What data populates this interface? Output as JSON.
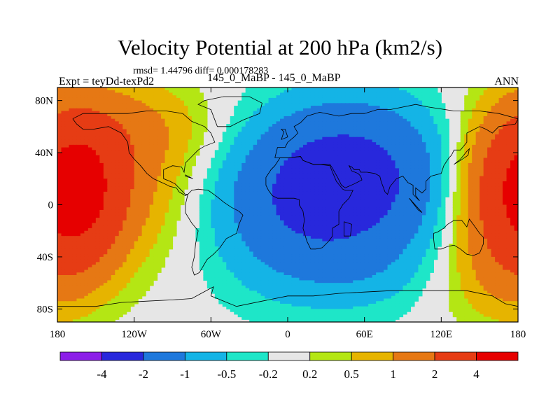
{
  "header": {
    "title": "Velocity Potential at 200 hPa (km2/s)",
    "stats": "rmsd= 1.44796  diff= 0.000178283",
    "expt": "Expt = teyDd-texPd2",
    "cases": "145_0_MaBP - 145_0_MaBP",
    "season": "ANN"
  },
  "chart_data": {
    "type": "contour-map",
    "title": "Velocity Potential at 200 hPa (km2/s)",
    "subtitle": "rmsd= 1.44796  diff= 0.000178283",
    "xlabel": "",
    "ylabel": "",
    "xlim": [
      -180,
      180
    ],
    "ylim": [
      -90,
      90
    ],
    "x_ticks": [
      {
        "value": -180,
        "label": "180"
      },
      {
        "value": -120,
        "label": "120W"
      },
      {
        "value": -60,
        "label": "60W"
      },
      {
        "value": 0,
        "label": "0"
      },
      {
        "value": 60,
        "label": "60E"
      },
      {
        "value": 120,
        "label": "120E"
      },
      {
        "value": 180,
        "label": "180"
      }
    ],
    "y_ticks": [
      {
        "value": 80,
        "label": "80N"
      },
      {
        "value": 40,
        "label": "40N"
      },
      {
        "value": 0,
        "label": "0"
      },
      {
        "value": -40,
        "label": "40S"
      },
      {
        "value": -80,
        "label": "80S"
      }
    ],
    "contour_levels": [
      -4,
      -2,
      -1,
      -0.5,
      -0.2,
      0.2,
      0.5,
      1,
      2,
      4
    ],
    "level_labels": [
      "-4",
      "-2",
      "-1",
      "-0.5",
      "-0.2",
      "0.2",
      "0.5",
      "1",
      "2",
      "4"
    ],
    "colors": [
      "#8c1ee8",
      "#2828dc",
      "#1e78dc",
      "#14b4e6",
      "#1ee6c8",
      "#e6e6e6",
      "#b4e614",
      "#e6b400",
      "#e67814",
      "#e63c14",
      "#e60000"
    ],
    "centers": [
      {
        "name": "negative-center",
        "lon": 50,
        "lat": 20,
        "value": -2.5
      },
      {
        "name": "positive-center-east",
        "lon": 175,
        "lat": 5,
        "value": 2.6
      },
      {
        "name": "positive-center-west",
        "lon": -160,
        "lat": 10,
        "value": 2.3
      }
    ]
  },
  "colors": {
    "background": "#ffffff",
    "land_outline": "#000000"
  }
}
